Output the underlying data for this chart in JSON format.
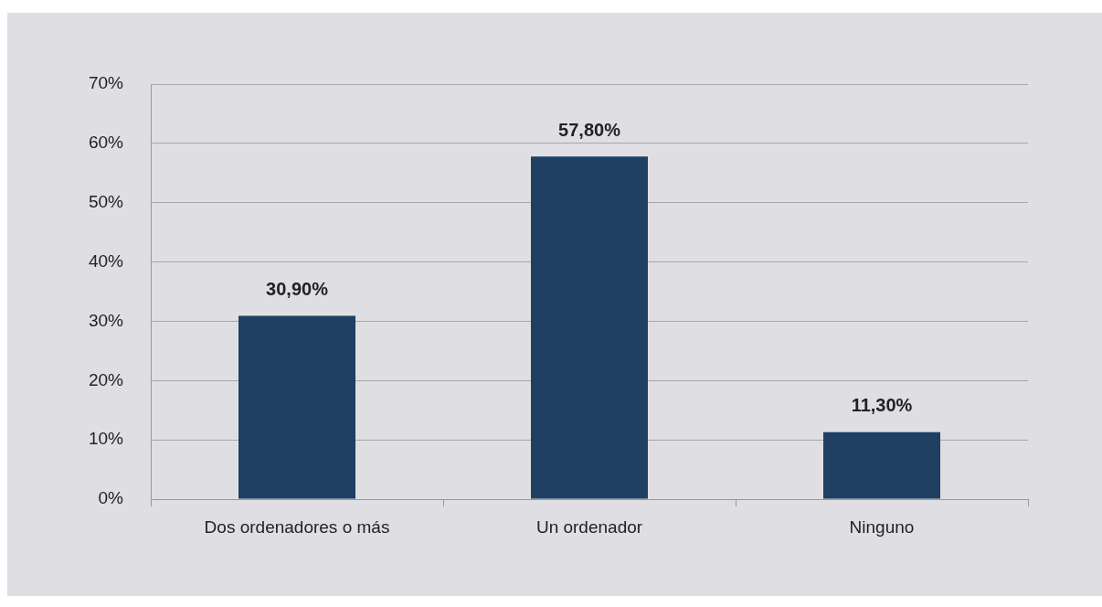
{
  "chart_data": {
    "type": "bar",
    "categories": [
      "Dos ordenadores o más",
      "Un ordenador",
      "Ninguno"
    ],
    "values": [
      30.9,
      57.8,
      11.3
    ],
    "color": "#1f3f63",
    "value_labels": [
      "30,90%",
      "57,80%",
      "11,30%"
    ],
    "ylim": [
      0,
      70
    ],
    "yticks": [
      {
        "value": 0,
        "label": "0%"
      },
      {
        "value": 10,
        "label": "10%"
      },
      {
        "value": 20,
        "label": "20%"
      },
      {
        "value": 30,
        "label": "30%"
      },
      {
        "value": 40,
        "label": "40%"
      },
      {
        "value": 50,
        "label": "50%"
      },
      {
        "value": 60,
        "label": "60%"
      },
      {
        "value": 70,
        "label": "70%"
      }
    ],
    "grid": "y",
    "legend": false
  }
}
